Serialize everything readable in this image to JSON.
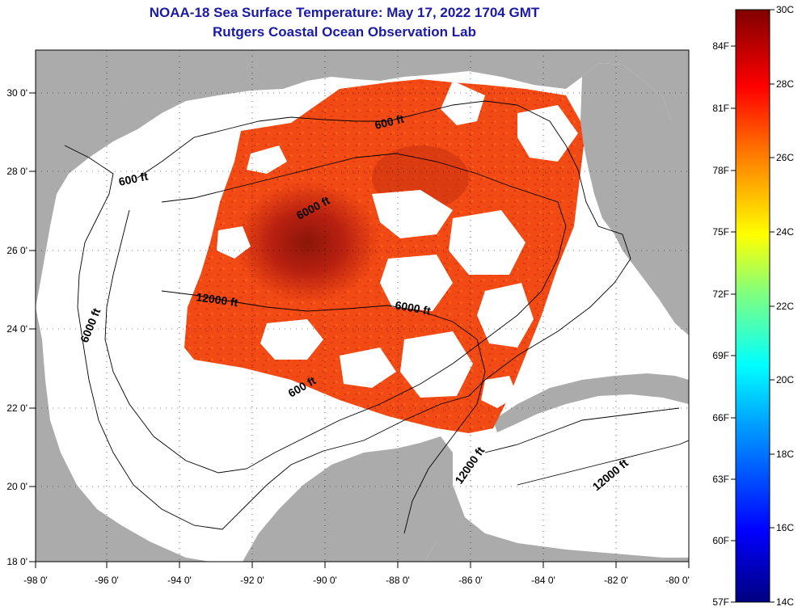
{
  "header": {
    "title": "NOAA-18 Sea Surface Temperature:  May 17, 2022 1704 GMT",
    "subtitle": "Rutgers Coastal Ocean Observation Lab"
  },
  "axes": {
    "lon_labels": [
      "-98 0'",
      "-96 0'",
      "-94 0'",
      "-92 0'",
      "-90 0'",
      "-88 0'",
      "-86 0'",
      "-84 0'",
      "-82 0'",
      "-80 0'"
    ],
    "lat_labels": [
      "30 0'",
      "28 0'",
      "26 0'",
      "24 0'",
      "22 0'",
      "20 0'",
      "18 0'"
    ],
    "lon_range": [
      -98,
      -80
    ],
    "lat_range": [
      18,
      31
    ]
  },
  "contours": [
    {
      "label": "600 ft"
    },
    {
      "label": "600 ft"
    },
    {
      "label": "6000 ft"
    },
    {
      "label": "12000 ft"
    },
    {
      "label": "6000 ft"
    },
    {
      "label": "6000 ft"
    },
    {
      "label": "600 ft"
    },
    {
      "label": "12000 ft"
    },
    {
      "label": "12000 ft"
    }
  ],
  "colorbar": {
    "celsius_labels": [
      "30C",
      "28C",
      "26C",
      "24C",
      "22C",
      "20C",
      "18C",
      "16C",
      "14C"
    ],
    "fahrenheit_labels": [
      "84F",
      "81F",
      "78F",
      "75F",
      "72F",
      "69F",
      "66F",
      "63F",
      "60F",
      "57F"
    ],
    "range_c": [
      14,
      30
    ],
    "colors": [
      "#000080",
      "#0000ff",
      "#00a0ff",
      "#00ffff",
      "#80ff80",
      "#ffff00",
      "#ff8000",
      "#ff0000",
      "#800000"
    ]
  },
  "colors": {
    "land": "#ababab",
    "ocean_missing": "#ffffff",
    "sst_main": "#f24a14",
    "sst_warm": "#a01808",
    "title": "#1a1aa6"
  }
}
